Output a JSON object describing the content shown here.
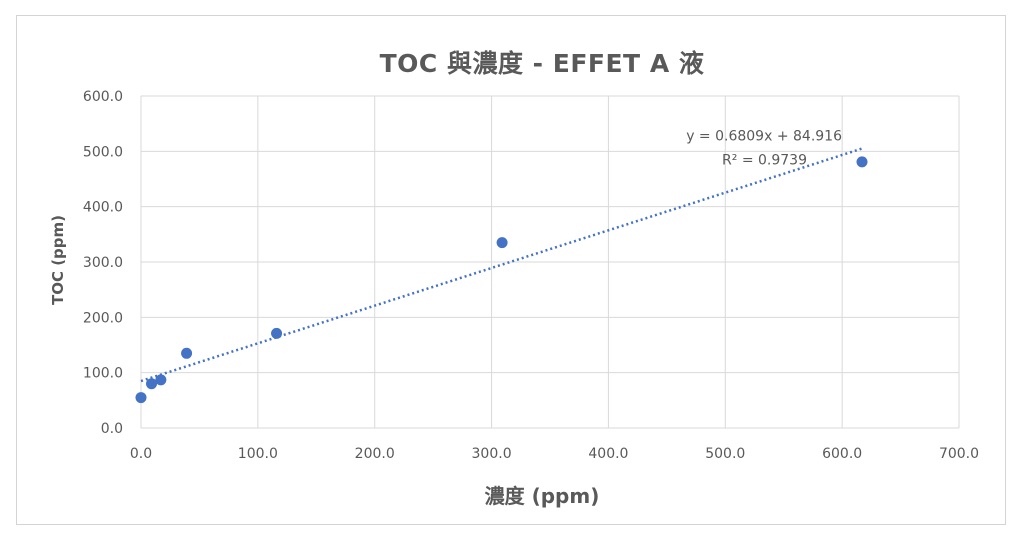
{
  "chart_data": {
    "type": "scatter",
    "title": "TOC 與濃度 - EFFET A 液",
    "xlabel": "濃度 (ppm)",
    "ylabel": "TOC (ppm)",
    "xlim": [
      0,
      700
    ],
    "ylim": [
      0,
      600
    ],
    "xticks": [
      "0.0",
      "100.0",
      "200.0",
      "300.0",
      "400.0",
      "500.0",
      "600.0",
      "700.0"
    ],
    "yticks": [
      "0.0",
      "100.0",
      "200.0",
      "300.0",
      "400.0",
      "500.0",
      "600.0"
    ],
    "grid": true,
    "series": [
      {
        "color": "#4472c4",
        "points": [
          {
            "x": 0,
            "y": 55
          },
          {
            "x": 9,
            "y": 80
          },
          {
            "x": 17,
            "y": 87
          },
          {
            "x": 39,
            "y": 135
          },
          {
            "x": 116,
            "y": 171
          },
          {
            "x": 309,
            "y": 335
          },
          {
            "x": 617,
            "y": 481
          }
        ]
      }
    ],
    "trendline": {
      "type": "linear",
      "slope": 0.6809,
      "intercept": 84.916,
      "x_range": [
        0,
        617
      ],
      "equation": "y = 0.6809x + 84.916",
      "r2_label": "R² = 0.9739",
      "color": "#4472c4",
      "style": "dotted"
    }
  }
}
